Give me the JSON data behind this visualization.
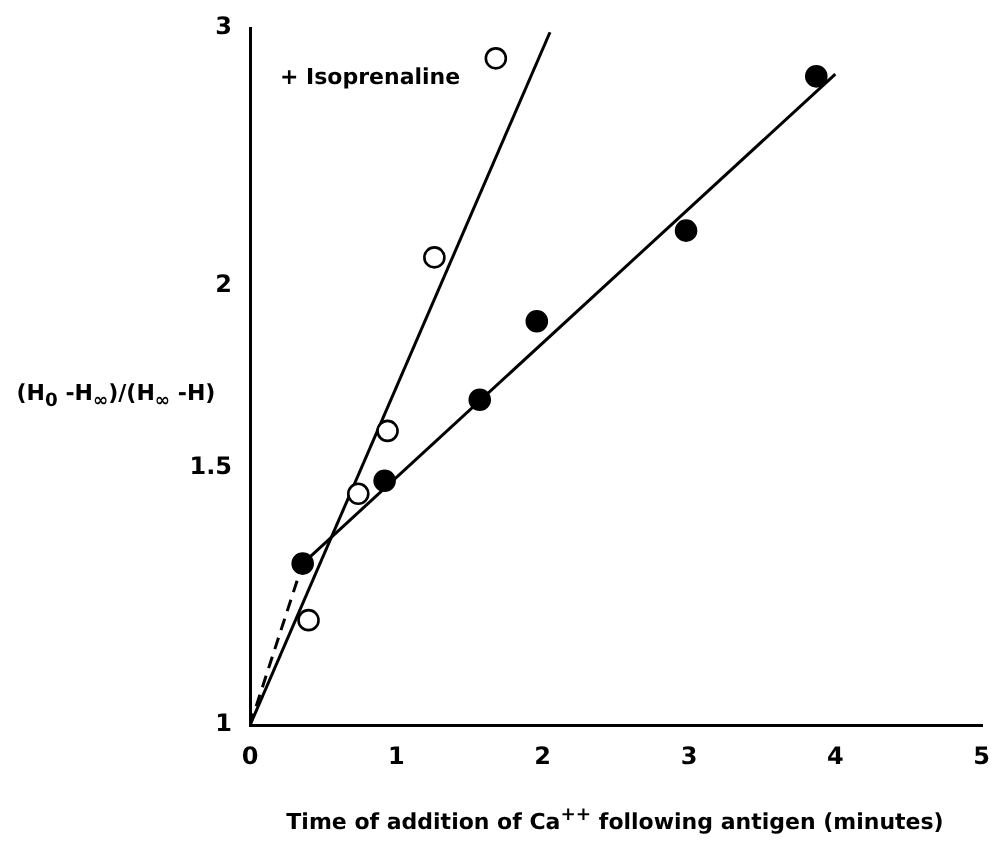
{
  "chart_data": {
    "type": "scatter",
    "xlabel": "Time of addition of Ca$^{++}$ following antigen (minutes)",
    "ylabel": "(H$_{0}$ -H$_{∞}$)/(H$_{∞}$ -H)",
    "xlim": [
      0,
      5
    ],
    "xticks": [
      0,
      1,
      2,
      3,
      4,
      5
    ],
    "ylim": [
      1,
      3
    ],
    "yticks": [
      1,
      1.5,
      2,
      3
    ],
    "log": "y",
    "grid": false,
    "legend": false,
    "annotations": [
      "+ Isoprenaline"
    ],
    "series": [
      {
        "type": "scatter",
        "marker": "circle",
        "color": "#000000",
        "x": [
          0.36,
          0.92,
          1.57,
          1.96,
          2.98,
          3.87
        ],
        "values": [
          1.29,
          1.47,
          1.67,
          1.89,
          2.18,
          2.78
        ]
      },
      {
        "type": "scatter",
        "marker": "circle",
        "color": "#ffffff",
        "x": [
          0.4,
          0.74,
          0.94,
          1.26,
          1.68
        ],
        "values": [
          1.18,
          1.44,
          1.59,
          2.09,
          2.86
        ]
      },
      {
        "type": "line",
        "marker": "none",
        "line_style": "dashed",
        "color": "#000000",
        "x": [
          0,
          0.36
        ],
        "values": [
          1,
          1.29
        ]
      },
      {
        "type": "line",
        "marker": "none",
        "line_style": "solid",
        "color": "#000000",
        "x": [
          0.36,
          4.0
        ],
        "values": [
          1.29,
          2.79
        ]
      },
      {
        "type": "line",
        "marker": "none",
        "line_style": "solid",
        "color": "#000000",
        "x": [
          0,
          2.05
        ],
        "values": [
          1,
          2.98
        ]
      }
    ]
  }
}
